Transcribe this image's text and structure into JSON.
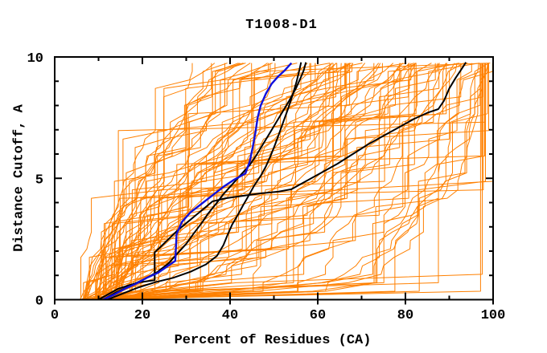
{
  "title": "T1008-D1",
  "chart_data": {
    "type": "line",
    "title": "T1008-D1",
    "xlabel": "Percent of Residues (CA)",
    "ylabel": "Distance Cutoff, A",
    "xlim": [
      0,
      100
    ],
    "ylim": [
      0,
      10
    ],
    "grid": false,
    "legend": false,
    "x_major_ticks": [
      0,
      20,
      40,
      60,
      80,
      100
    ],
    "x_minor_ticks": [
      10,
      30,
      50,
      70,
      90
    ],
    "y_major_ticks": [
      0,
      5,
      10
    ],
    "y_minor_ticks": [
      1,
      2,
      3,
      4,
      6,
      7,
      8,
      9
    ],
    "colors": {
      "ensemble": "#ff8000",
      "highlight": "#000000",
      "reference": "#1111dd",
      "frame": "#000000"
    },
    "series": [
      {
        "name": "highlight-black-long",
        "color": "#000000",
        "width": 2,
        "points": [
          [
            10,
            0
          ],
          [
            12,
            0.2
          ],
          [
            14.5,
            0.45
          ],
          [
            17,
            0.6
          ],
          [
            19.5,
            0.72
          ],
          [
            22.8,
            0.8
          ],
          [
            22.8,
            1.95
          ],
          [
            24,
            2.15
          ],
          [
            26,
            2.5
          ],
          [
            28,
            2.85
          ],
          [
            30,
            3.15
          ],
          [
            32,
            3.45
          ],
          [
            34,
            3.75
          ],
          [
            36,
            4.05
          ],
          [
            39,
            4.18
          ],
          [
            43,
            4.28
          ],
          [
            47,
            4.38
          ],
          [
            51,
            4.45
          ],
          [
            54,
            4.55
          ],
          [
            57.5,
            4.9
          ],
          [
            61,
            5.25
          ],
          [
            64.5,
            5.6
          ],
          [
            68,
            6.0
          ],
          [
            71.5,
            6.4
          ],
          [
            75,
            6.75
          ],
          [
            78.5,
            7.1
          ],
          [
            82,
            7.45
          ],
          [
            85,
            7.7
          ],
          [
            87.5,
            7.85
          ],
          [
            88.8,
            8.2
          ],
          [
            90,
            8.7
          ],
          [
            91.5,
            9.15
          ],
          [
            92.8,
            9.5
          ],
          [
            93.8,
            9.78
          ]
        ]
      },
      {
        "name": "highlight-black-2",
        "color": "#000000",
        "width": 2,
        "points": [
          [
            11,
            0
          ],
          [
            14,
            0.3
          ],
          [
            17.5,
            0.6
          ],
          [
            20.5,
            0.85
          ],
          [
            23.5,
            1.15
          ],
          [
            26,
            1.5
          ],
          [
            28,
            1.9
          ],
          [
            30,
            2.3
          ],
          [
            31.8,
            2.75
          ],
          [
            33.5,
            3.15
          ],
          [
            35,
            3.55
          ],
          [
            36.8,
            3.95
          ],
          [
            38.5,
            4.35
          ],
          [
            40.5,
            4.75
          ],
          [
            42.5,
            5.15
          ],
          [
            44.5,
            5.55
          ],
          [
            46,
            5.95
          ],
          [
            47.5,
            6.4
          ],
          [
            49,
            6.85
          ],
          [
            50.5,
            7.3
          ],
          [
            52,
            7.75
          ],
          [
            53.5,
            8.2
          ],
          [
            55,
            8.7
          ],
          [
            56,
            9.1
          ],
          [
            56.8,
            9.45
          ],
          [
            57.3,
            9.78
          ]
        ]
      },
      {
        "name": "highlight-black-3",
        "color": "#000000",
        "width": 2,
        "points": [
          [
            12,
            0
          ],
          [
            15.5,
            0.25
          ],
          [
            19,
            0.5
          ],
          [
            23,
            0.72
          ],
          [
            27,
            0.9
          ],
          [
            31,
            1.15
          ],
          [
            34.5,
            1.45
          ],
          [
            37,
            1.8
          ],
          [
            38.5,
            2.25
          ],
          [
            39.5,
            2.7
          ],
          [
            40.5,
            3.1
          ],
          [
            41.8,
            3.5
          ],
          [
            43,
            3.9
          ],
          [
            44.3,
            4.3
          ],
          [
            45.5,
            4.7
          ],
          [
            47,
            5.1
          ],
          [
            48.2,
            5.5
          ],
          [
            49.3,
            5.95
          ],
          [
            50.3,
            6.4
          ],
          [
            51.3,
            6.9
          ],
          [
            52.3,
            7.4
          ],
          [
            53.3,
            7.9
          ],
          [
            54.3,
            8.45
          ],
          [
            55.2,
            9.0
          ],
          [
            55.8,
            9.45
          ],
          [
            56.2,
            9.78
          ]
        ]
      },
      {
        "name": "reference-blue",
        "color": "#1111dd",
        "width": 2.4,
        "points": [
          [
            11,
            0
          ],
          [
            13.5,
            0.2
          ],
          [
            16,
            0.45
          ],
          [
            18.5,
            0.65
          ],
          [
            21,
            0.9
          ],
          [
            23.5,
            1.1
          ],
          [
            25.5,
            1.35
          ],
          [
            27.5,
            1.6
          ],
          [
            27.8,
            2.7
          ],
          [
            29,
            3.2
          ],
          [
            31,
            3.6
          ],
          [
            33.5,
            3.95
          ],
          [
            36,
            4.3
          ],
          [
            38.5,
            4.65
          ],
          [
            41,
            4.95
          ],
          [
            43.5,
            5.2
          ],
          [
            44.5,
            5.7
          ],
          [
            45.2,
            6.3
          ],
          [
            45.8,
            6.9
          ],
          [
            46.3,
            7.5
          ],
          [
            47,
            8.0
          ],
          [
            48.2,
            8.5
          ],
          [
            49.5,
            8.9
          ],
          [
            51,
            9.2
          ],
          [
            52.5,
            9.45
          ],
          [
            54,
            9.75
          ]
        ]
      }
    ],
    "background_ensemble": {
      "description": "unlabeled server model GDT curves",
      "color": "#ff8000",
      "width": 1,
      "count": 96,
      "seed": 11,
      "steps": 28,
      "cutoff_max": 9.75,
      "start_percent_range": [
        5.5,
        15
      ],
      "end_percent_range": [
        30,
        100
      ]
    }
  },
  "layout_labels": {
    "y_major_labels": [
      "0",
      "5",
      "10"
    ],
    "x_major_labels": [
      "0",
      "20",
      "40",
      "60",
      "80",
      "100"
    ]
  }
}
